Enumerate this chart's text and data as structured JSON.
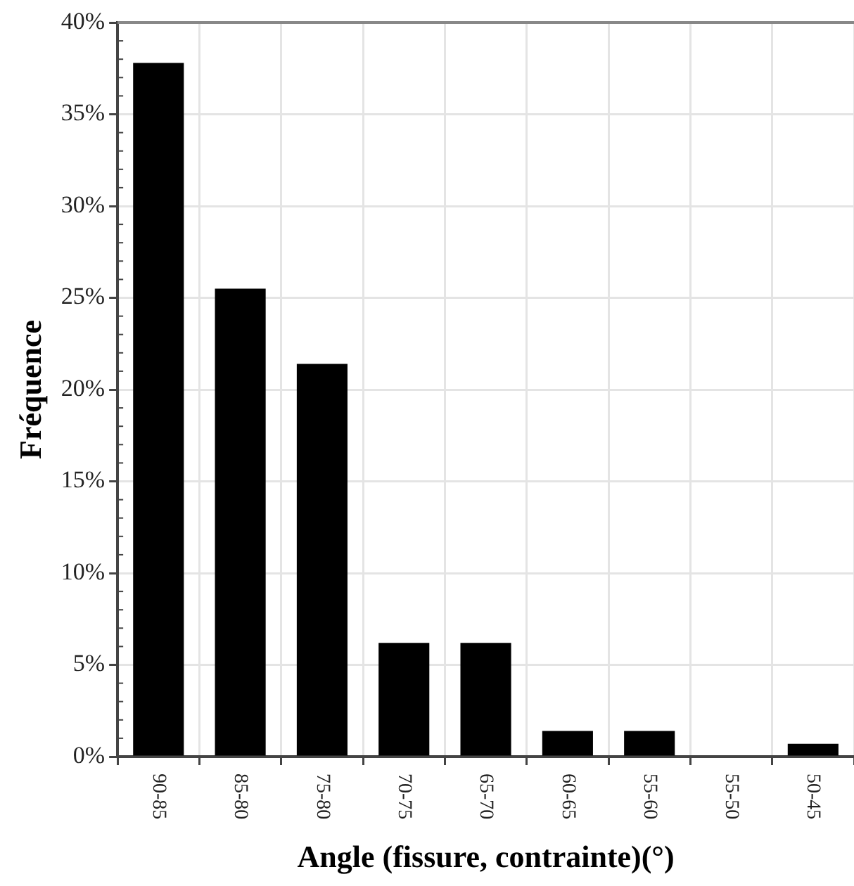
{
  "chart_data": {
    "type": "bar",
    "xlabel": "Angle (fissure, contrainte)(°)",
    "ylabel": "Fréquence",
    "categories": [
      "90-85",
      "85-80",
      "75-80",
      "70-75",
      "65-70",
      "60-65",
      "55-60",
      "55-50",
      "50-45"
    ],
    "values": [
      37.8,
      25.5,
      21.4,
      6.2,
      6.2,
      1.4,
      1.4,
      0,
      0.7
    ],
    "color": "#000000",
    "ylim": [
      0,
      40
    ],
    "yticks": [
      {
        "value": 0,
        "label": "0%"
      },
      {
        "value": 5,
        "label": "5%"
      },
      {
        "value": 10,
        "label": "10%"
      },
      {
        "value": 15,
        "label": "15%"
      },
      {
        "value": 20,
        "label": "20%"
      },
      {
        "value": 25,
        "label": "25%"
      },
      {
        "value": 30,
        "label": "30%"
      },
      {
        "value": 35,
        "label": "35%"
      },
      {
        "value": 40,
        "label": "40%"
      }
    ],
    "grid": true
  }
}
